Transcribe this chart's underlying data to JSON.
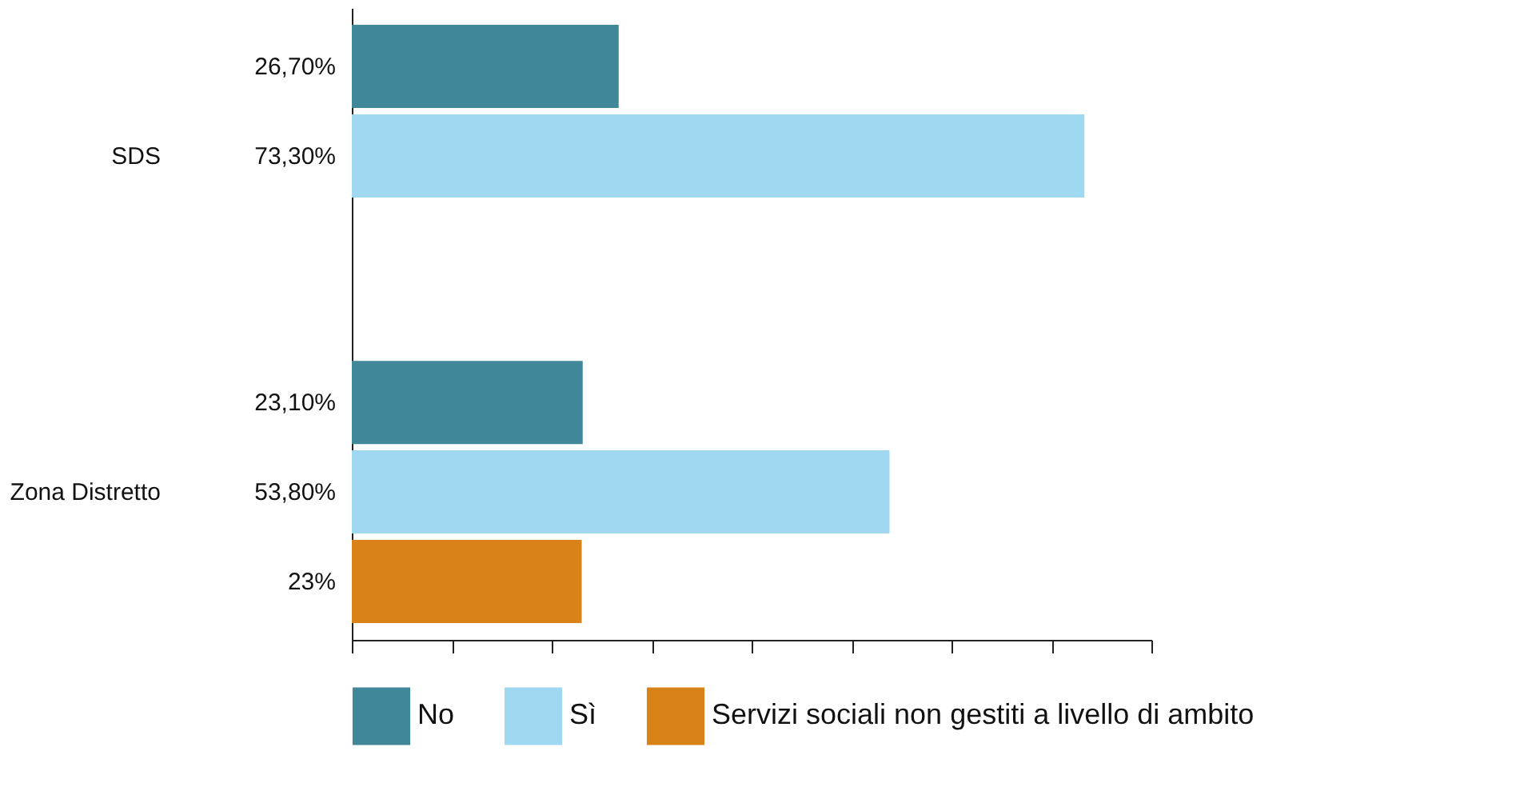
{
  "chart_data": {
    "type": "bar",
    "orientation": "horizontal",
    "categories": [
      "SDS",
      "Zona Distretto"
    ],
    "series": [
      {
        "name": "No",
        "color": "#41879a",
        "values": [
          26.7,
          23.1
        ],
        "value_labels": [
          "26,70%",
          "23,10%"
        ]
      },
      {
        "name": "Sì",
        "color": "#a1d8f1",
        "values": [
          73.3,
          53.8
        ],
        "value_labels": [
          "73,30%",
          "53,80%"
        ]
      },
      {
        "name": "Servizi sociali non gestiti a livello di ambito",
        "color": "#d98218",
        "values": [
          null,
          23
        ],
        "value_labels": [
          null,
          "23%"
        ]
      }
    ],
    "xlim": [
      0,
      80
    ],
    "xticks": [
      {
        "value": 0,
        "label": null
      },
      {
        "value": 10,
        "label": null
      },
      {
        "value": 20,
        "label": null
      },
      {
        "value": 30,
        "label": null
      },
      {
        "value": 40,
        "label": null
      },
      {
        "value": 50,
        "label": null
      },
      {
        "value": 60,
        "label": null
      },
      {
        "value": 70,
        "label": null
      },
      {
        "value": 80,
        "label": null
      }
    ],
    "tick_labels": "y",
    "grid": false,
    "legend": "bottom"
  }
}
